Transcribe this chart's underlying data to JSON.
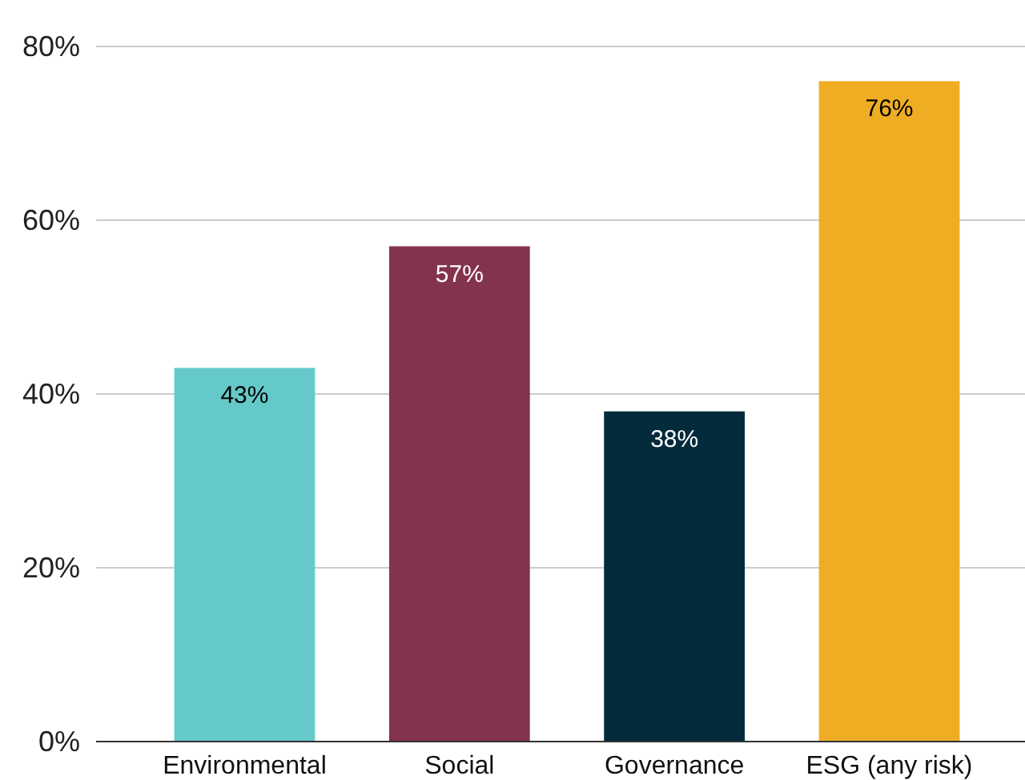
{
  "chart_data": {
    "type": "bar",
    "categories": [
      "Environmental",
      "Social",
      "Governance",
      "ESG (any risk)"
    ],
    "values": [
      43,
      57,
      38,
      76
    ],
    "colors": [
      "#66c9c9",
      "#83334b",
      "#032b3c",
      "#efad24"
    ],
    "value_labels": [
      "43%",
      "57%",
      "38%",
      "76%"
    ],
    "ylim": [
      0,
      80
    ],
    "yticks": [
      {
        "value": 0,
        "label": "0%"
      },
      {
        "value": 20,
        "label": "20%"
      },
      {
        "value": 40,
        "label": "40%"
      },
      {
        "value": 60,
        "label": "60%"
      },
      {
        "value": 80,
        "label": "80%"
      }
    ],
    "grid": "y"
  }
}
